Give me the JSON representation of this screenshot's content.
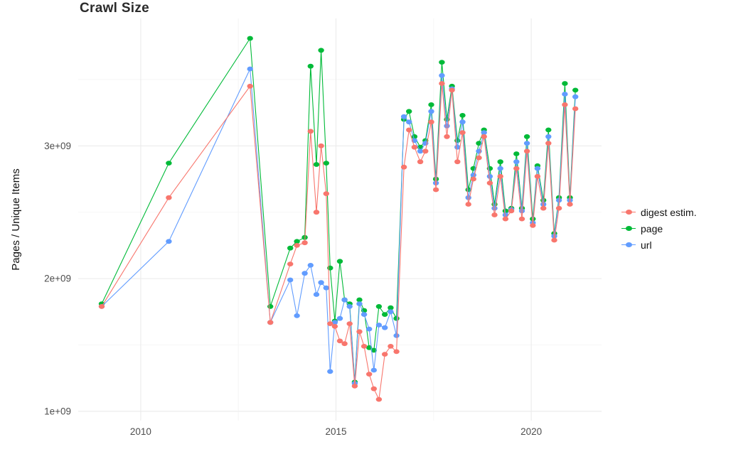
{
  "page": {
    "background": "#ffffff"
  },
  "chart_data": {
    "type": "scatter",
    "title": "Crawl Size",
    "xlabel": "",
    "ylabel": "Pages / Unique Items",
    "legend_position": "right",
    "grid": {
      "major_color": "#ebebeb",
      "minor_color": "#f4f4f4",
      "on": true
    },
    "xlim": [
      2008.4,
      2021.8
    ],
    "ylim": [
      930000000.0,
      3960000000.0
    ],
    "x_ticks": [
      {
        "v": 2010,
        "label": "2010"
      },
      {
        "v": 2015,
        "label": "2015"
      },
      {
        "v": 2020,
        "label": "2020"
      }
    ],
    "x_minor": [
      2012.5,
      2017.5
    ],
    "y_ticks": [
      {
        "v": 1000000000.0,
        "label": "1e+09"
      },
      {
        "v": 2000000000.0,
        "label": "2e+09"
      },
      {
        "v": 3000000000.0,
        "label": "3e+09"
      }
    ],
    "y_minor": [
      1500000000.0,
      2500000000.0,
      3500000000.0
    ],
    "x": [
      2009.0,
      2010.72,
      2012.8,
      2013.32,
      2013.83,
      2014.0,
      2014.2,
      2014.35,
      2014.5,
      2014.62,
      2014.75,
      2014.85,
      2014.97,
      2015.1,
      2015.22,
      2015.35,
      2015.48,
      2015.6,
      2015.72,
      2015.85,
      2015.97,
      2016.1,
      2016.25,
      2016.4,
      2016.55,
      2016.74,
      2016.87,
      2017.01,
      2017.16,
      2017.29,
      2017.44,
      2017.56,
      2017.71,
      2017.84,
      2017.97,
      2018.11,
      2018.24,
      2018.39,
      2018.52,
      2018.66,
      2018.79,
      2018.94,
      2019.06,
      2019.21,
      2019.34,
      2019.49,
      2019.62,
      2019.76,
      2019.89,
      2020.04,
      2020.16,
      2020.31,
      2020.44,
      2020.59,
      2020.71,
      2020.86,
      2020.99,
      2021.13
    ],
    "series": [
      {
        "name": "digest estim.",
        "color": "#F8766D",
        "values": [
          1790000000.0,
          2610000000.0,
          3450000000.0,
          1670000000.0,
          2110000000.0,
          2250000000.0,
          2270000000.0,
          3110000000.0,
          2500000000.0,
          3000000000.0,
          2640000000.0,
          1660000000.0,
          1640000000.0,
          1530000000.0,
          1510000000.0,
          1660000000.0,
          1190000000.0,
          1600000000.0,
          1490000000.0,
          1280000000.0,
          1170000000.0,
          1090000000.0,
          1430000000.0,
          1490000000.0,
          1450000000.0,
          2840000000.0,
          3120000000.0,
          2990000000.0,
          2880000000.0,
          2960000000.0,
          3180000000.0,
          2670000000.0,
          3470000000.0,
          3070000000.0,
          3420000000.0,
          2880000000.0,
          3100000000.0,
          2560000000.0,
          2750000000.0,
          2910000000.0,
          3070000000.0,
          2720000000.0,
          2480000000.0,
          2770000000.0,
          2450000000.0,
          2510000000.0,
          2830000000.0,
          2450000000.0,
          2960000000.0,
          2400000000.0,
          2770000000.0,
          2530000000.0,
          3020000000.0,
          2290000000.0,
          2530000000.0,
          3310000000.0,
          2560000000.0,
          3280000000.0
        ]
      },
      {
        "name": "page",
        "color": "#00BA38",
        "values": [
          1810000000.0,
          2870000000.0,
          3810000000.0,
          1790000000.0,
          2230000000.0,
          2280000000.0,
          2310000000.0,
          3600000000.0,
          2860000000.0,
          3720000000.0,
          2870000000.0,
          2080000000.0,
          1680000000.0,
          2130000000.0,
          1840000000.0,
          1810000000.0,
          1220000000.0,
          1840000000.0,
          1760000000.0,
          1480000000.0,
          1460000000.0,
          1790000000.0,
          1730000000.0,
          1780000000.0,
          1700000000.0,
          3200000000.0,
          3260000000.0,
          3070000000.0,
          2990000000.0,
          3040000000.0,
          3310000000.0,
          2750000000.0,
          3630000000.0,
          3200000000.0,
          3450000000.0,
          3040000000.0,
          3230000000.0,
          2670000000.0,
          2830000000.0,
          3020000000.0,
          3120000000.0,
          2830000000.0,
          2560000000.0,
          2880000000.0,
          2510000000.0,
          2530000000.0,
          2940000000.0,
          2530000000.0,
          3070000000.0,
          2450000000.0,
          2850000000.0,
          2590000000.0,
          3120000000.0,
          2340000000.0,
          2610000000.0,
          3470000000.0,
          2610000000.0,
          3420000000.0
        ]
      },
      {
        "name": "url",
        "color": "#619CFF",
        "values": [
          1790000000.0,
          2280000000.0,
          3580000000.0,
          1670000000.0,
          1990000000.0,
          1720000000.0,
          2040000000.0,
          2100000000.0,
          1880000000.0,
          1970000000.0,
          1930000000.0,
          1300000000.0,
          1670000000.0,
          1700000000.0,
          1840000000.0,
          1790000000.0,
          1210000000.0,
          1810000000.0,
          1730000000.0,
          1620000000.0,
          1310000000.0,
          1650000000.0,
          1630000000.0,
          1750000000.0,
          1570000000.0,
          3220000000.0,
          3180000000.0,
          3040000000.0,
          2960000000.0,
          3020000000.0,
          3260000000.0,
          2720000000.0,
          3530000000.0,
          3150000000.0,
          3430000000.0,
          2990000000.0,
          3180000000.0,
          2610000000.0,
          2780000000.0,
          2960000000.0,
          3100000000.0,
          2770000000.0,
          2530000000.0,
          2830000000.0,
          2480000000.0,
          2520000000.0,
          2880000000.0,
          2510000000.0,
          3020000000.0,
          2420000000.0,
          2830000000.0,
          2560000000.0,
          3070000000.0,
          2320000000.0,
          2590000000.0,
          3390000000.0,
          2590000000.0,
          3370000000.0
        ]
      }
    ]
  }
}
